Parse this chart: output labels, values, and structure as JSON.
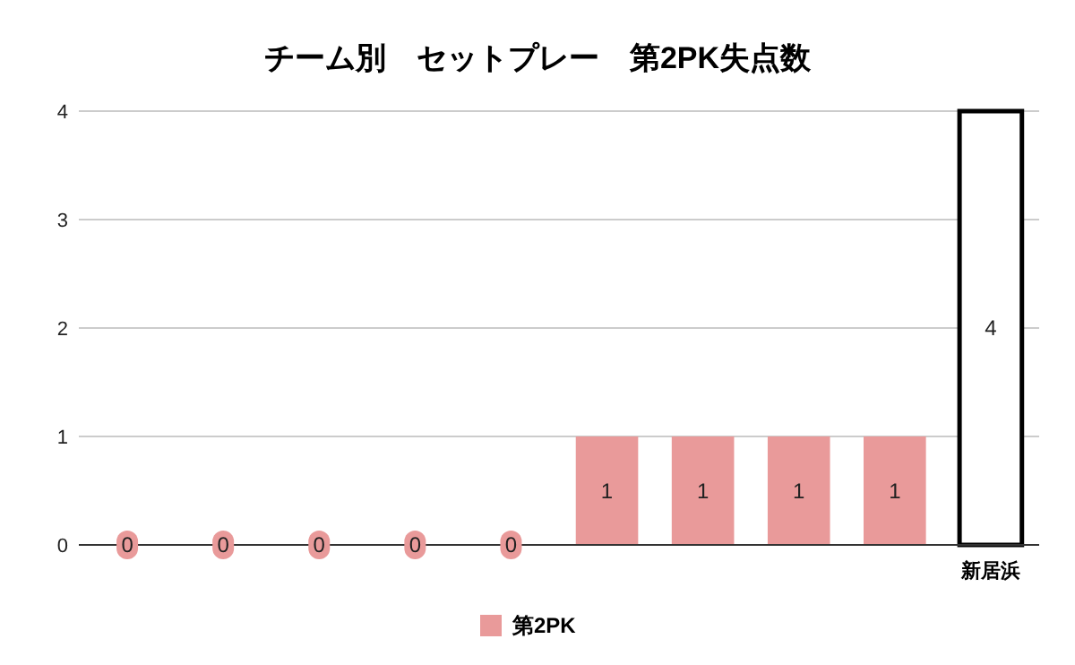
{
  "chart_data": {
    "type": "bar",
    "title": "チーム別　セットプレー　第2PK失点数",
    "categories": [
      null,
      null,
      null,
      null,
      null,
      null,
      null,
      null,
      null,
      "新居浜"
    ],
    "series": [
      {
        "name": "第2PK",
        "color": "#e99a9a",
        "colors": [
          "#e99a9a",
          "#e99a9a",
          "#e99a9a",
          "#e99a9a",
          "#e99a9a",
          "#e99a9a",
          "#e99a9a",
          "#e99a9a",
          "#e99a9a",
          "#ffffff"
        ],
        "values": [
          0,
          0,
          0,
          0,
          0,
          1,
          1,
          1,
          1,
          4
        ]
      }
    ],
    "ylim": [
      0,
      4
    ],
    "yticks": [
      0,
      1,
      2,
      3,
      4
    ],
    "grid": "y",
    "legend": "bottom",
    "data_labels": true
  }
}
